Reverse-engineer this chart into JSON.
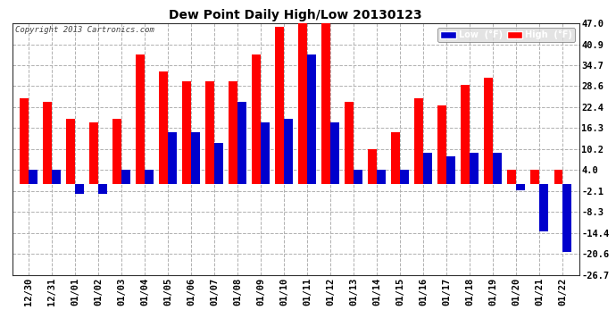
{
  "title": "Dew Point Daily High/Low 20130123",
  "copyright": "Copyright 2013 Cartronics.com",
  "dates": [
    "12/30",
    "12/31",
    "01/01",
    "01/02",
    "01/03",
    "01/04",
    "01/05",
    "01/06",
    "01/07",
    "01/08",
    "01/09",
    "01/10",
    "01/11",
    "01/12",
    "01/13",
    "01/14",
    "01/15",
    "01/16",
    "01/17",
    "01/18",
    "01/19",
    "01/20",
    "01/21",
    "01/22"
  ],
  "high": [
    25,
    24,
    19,
    18,
    19,
    38,
    33,
    30,
    30,
    30,
    38,
    46,
    47,
    47,
    24,
    10,
    15,
    25,
    23,
    29,
    31,
    4,
    4,
    4
  ],
  "low": [
    4,
    4,
    -3,
    -3,
    4,
    4,
    15,
    15,
    12,
    24,
    18,
    19,
    38,
    18,
    4,
    4,
    4,
    9,
    8,
    9,
    9,
    -2,
    -14,
    -20
  ],
  "ylim": [
    -26.7,
    47.0
  ],
  "yticks": [
    -26.7,
    -20.6,
    -14.4,
    -8.3,
    -2.1,
    4.0,
    10.2,
    16.3,
    22.4,
    28.6,
    34.7,
    40.9,
    47.0
  ],
  "high_color": "#ff0000",
  "low_color": "#0000cc",
  "bg_color": "#ffffff",
  "grid_color": "#b0b0b0",
  "bar_width": 0.38
}
